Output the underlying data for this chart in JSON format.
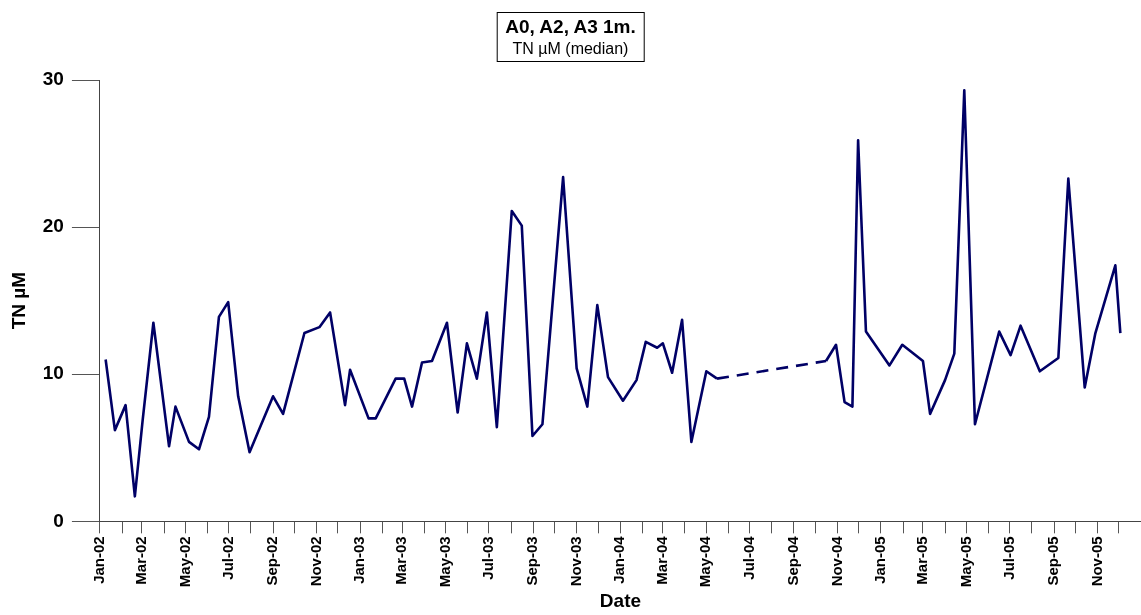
{
  "chart_data": {
    "type": "line",
    "title": "A0, A2, A3 1m.",
    "subtitle": "TN µM (median)",
    "xlabel": "Date",
    "ylabel": "TN µM",
    "xlim": [
      "2002-01-01",
      "2006-01-01"
    ],
    "xticks": [
      {
        "value": "2002-01-01",
        "label": "Jan-02"
      },
      {
        "value": "2002-02-01",
        "label": null
      },
      {
        "value": "2002-03-01",
        "label": "Mar-02"
      },
      {
        "value": "2002-04-01",
        "label": null
      },
      {
        "value": "2002-05-01",
        "label": "May-02"
      },
      {
        "value": "2002-06-01",
        "label": null
      },
      {
        "value": "2002-07-01",
        "label": "Jul-02"
      },
      {
        "value": "2002-08-01",
        "label": null
      },
      {
        "value": "2002-09-01",
        "label": "Sep-02"
      },
      {
        "value": "2002-10-01",
        "label": null
      },
      {
        "value": "2002-11-01",
        "label": "Nov-02"
      },
      {
        "value": "2002-12-01",
        "label": null
      },
      {
        "value": "2003-01-01",
        "label": "Jan-03"
      },
      {
        "value": "2003-02-01",
        "label": null
      },
      {
        "value": "2003-03-01",
        "label": "Mar-03"
      },
      {
        "value": "2003-04-01",
        "label": null
      },
      {
        "value": "2003-05-01",
        "label": "May-03"
      },
      {
        "value": "2003-06-01",
        "label": null
      },
      {
        "value": "2003-07-01",
        "label": "Jul-03"
      },
      {
        "value": "2003-08-01",
        "label": null
      },
      {
        "value": "2003-09-01",
        "label": "Sep-03"
      },
      {
        "value": "2003-10-01",
        "label": null
      },
      {
        "value": "2003-11-01",
        "label": "Nov-03"
      },
      {
        "value": "2003-12-01",
        "label": null
      },
      {
        "value": "2004-01-01",
        "label": "Jan-04"
      },
      {
        "value": "2004-02-01",
        "label": null
      },
      {
        "value": "2004-03-01",
        "label": "Mar-04"
      },
      {
        "value": "2004-04-01",
        "label": null
      },
      {
        "value": "2004-05-01",
        "label": "May-04"
      },
      {
        "value": "2004-06-01",
        "label": null
      },
      {
        "value": "2004-07-01",
        "label": "Jul-04"
      },
      {
        "value": "2004-08-01",
        "label": null
      },
      {
        "value": "2004-09-01",
        "label": "Sep-04"
      },
      {
        "value": "2004-10-01",
        "label": null
      },
      {
        "value": "2004-11-01",
        "label": "Nov-04"
      },
      {
        "value": "2004-12-01",
        "label": null
      },
      {
        "value": "2005-01-01",
        "label": "Jan-05"
      },
      {
        "value": "2005-02-01",
        "label": null
      },
      {
        "value": "2005-03-01",
        "label": "Mar-05"
      },
      {
        "value": "2005-04-01",
        "label": null
      },
      {
        "value": "2005-05-01",
        "label": "May-05"
      },
      {
        "value": "2005-06-01",
        "label": null
      },
      {
        "value": "2005-07-01",
        "label": "Jul-05"
      },
      {
        "value": "2005-08-01",
        "label": null
      },
      {
        "value": "2005-09-01",
        "label": "Sep-05"
      },
      {
        "value": "2005-10-01",
        "label": null
      },
      {
        "value": "2005-11-01",
        "label": "Nov-05"
      },
      {
        "value": "2005-12-01",
        "label": null
      }
    ],
    "ylim": [
      0,
      30
    ],
    "yticks": [
      0,
      10,
      20,
      30
    ],
    "grid": false,
    "legend": false,
    "marker": "none",
    "series": [
      {
        "color": "#000066",
        "line_style": "solid",
        "x": [
          "2002-01-09",
          "2002-01-22",
          "2002-02-06",
          "2002-02-19",
          "2002-03-02",
          "2002-03-17",
          "2002-04-08",
          "2002-04-17",
          "2002-05-06",
          "2002-05-20",
          "2002-06-03",
          "2002-06-17",
          "2002-06-30",
          "2002-07-14",
          "2002-07-30",
          "2002-09-01",
          "2002-09-15",
          "2002-10-15",
          "2002-11-05",
          "2002-11-20",
          "2002-12-11",
          "2002-12-18",
          "2003-01-13",
          "2003-01-23",
          "2003-02-20",
          "2003-03-04",
          "2003-03-15",
          "2003-03-29",
          "2003-04-12",
          "2003-05-03",
          "2003-05-18",
          "2003-05-31",
          "2003-06-14",
          "2003-06-28",
          "2003-07-12",
          "2003-08-02",
          "2003-08-16",
          "2003-08-31",
          "2003-09-14",
          "2003-10-13",
          "2003-11-01",
          "2003-11-16",
          "2003-11-30",
          "2003-12-15",
          "2004-01-05",
          "2004-01-24",
          "2004-02-06",
          "2004-02-22",
          "2004-03-01",
          "2004-03-14",
          "2004-03-28",
          "2004-04-10",
          "2004-05-01",
          "2004-05-16"
        ],
        "values": [
          11.0,
          6.2,
          7.9,
          1.7,
          6.9,
          13.5,
          5.1,
          7.8,
          5.4,
          4.9,
          7.1,
          13.9,
          14.9,
          8.5,
          4.7,
          8.5,
          7.3,
          12.8,
          13.2,
          14.2,
          7.9,
          10.3,
          7.0,
          7.0,
          9.7,
          9.7,
          7.8,
          10.8,
          10.9,
          13.5,
          7.4,
          12.1,
          9.7,
          14.2,
          6.4,
          21.1,
          20.1,
          5.8,
          6.6,
          23.4,
          10.4,
          7.8,
          14.7,
          9.8,
          8.2,
          9.6,
          12.2,
          11.8,
          12.1,
          10.1,
          13.7,
          5.4,
          10.2,
          9.7
        ]
      },
      {
        "color": "#000066",
        "line_style": "dashed",
        "x": [
          "2004-05-16",
          "2004-10-16"
        ],
        "values": [
          9.7,
          10.9
        ]
      },
      {
        "color": "#000066",
        "line_style": "solid",
        "x": [
          "2004-10-16",
          "2004-10-30",
          "2004-11-11",
          "2004-11-22",
          "2004-11-30",
          "2004-12-11",
          "2005-01-13",
          "2005-01-31",
          "2005-03-01",
          "2005-03-11",
          "2005-04-01",
          "2005-04-14",
          "2005-04-28",
          "2005-05-13",
          "2005-06-16",
          "2005-07-02",
          "2005-07-16",
          "2005-08-12",
          "2005-09-07",
          "2005-09-21",
          "2005-10-14",
          "2005-10-29",
          "2005-11-26",
          "2005-12-03"
        ],
        "values": [
          10.9,
          12.0,
          8.1,
          7.8,
          25.9,
          12.9,
          10.6,
          12.0,
          10.9,
          7.3,
          9.6,
          11.4,
          29.3,
          6.6,
          12.9,
          11.3,
          13.3,
          10.2,
          11.1,
          23.3,
          9.1,
          12.8,
          17.4,
          12.8
        ]
      }
    ]
  }
}
